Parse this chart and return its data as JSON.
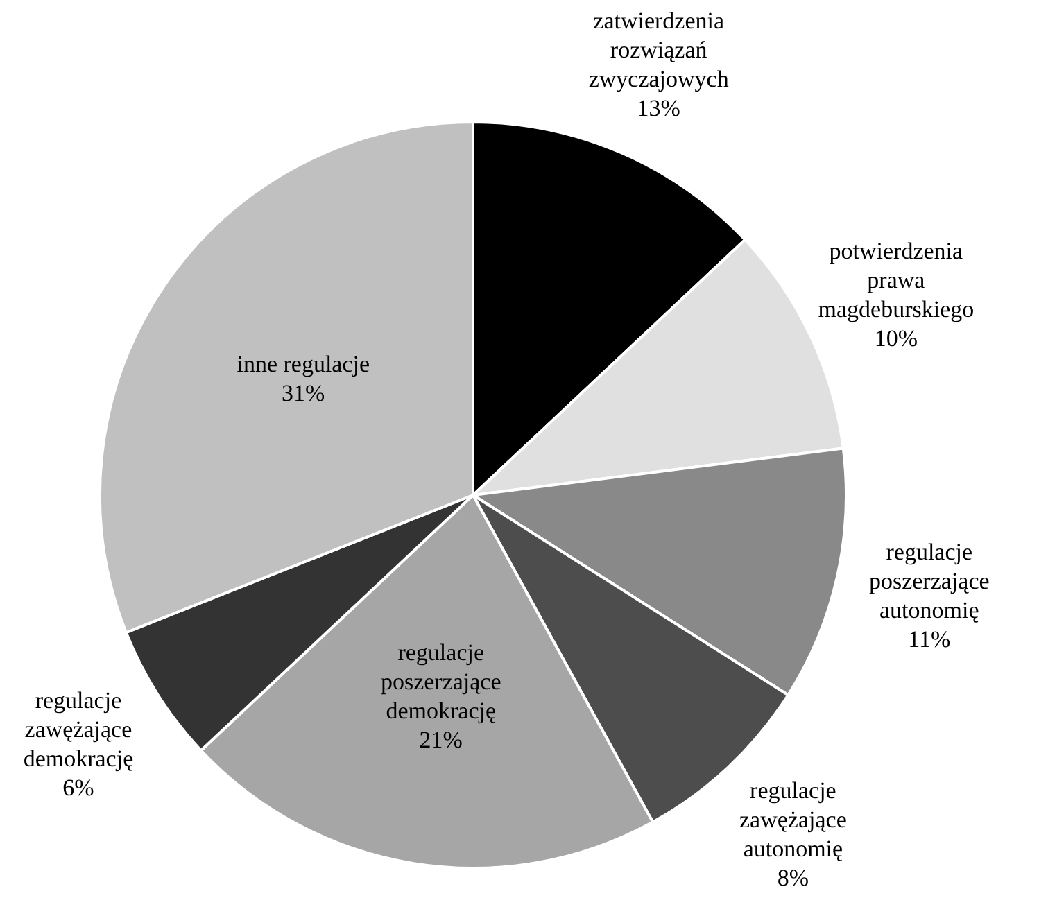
{
  "chart_data": {
    "type": "pie",
    "categories": [
      "zatwierdzenia rozwiązań zwyczajowych",
      "potwierdzenia prawa magdeburskiego",
      "regulacje poszerzające autonomię",
      "regulacje zawężające autonomię",
      "regulacje poszerzające demokrację",
      "regulacje zawężające demokrację",
      "inne regulacje"
    ],
    "values": [
      13,
      10,
      11,
      8,
      21,
      6,
      31
    ],
    "colors": [
      "#000000",
      "#e0e0e0",
      "#898989",
      "#4d4d4d",
      "#a6a6a6",
      "#333333",
      "#c0c0c0"
    ],
    "value_labels": [
      "13%",
      "10%",
      "11%",
      "8%",
      "21%",
      "6%",
      "31%"
    ],
    "legend": false
  }
}
